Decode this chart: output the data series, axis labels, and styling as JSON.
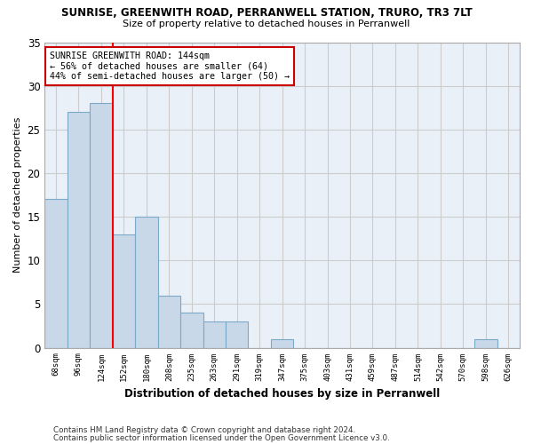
{
  "title": "SUNRISE, GREENWITH ROAD, PERRANWELL STATION, TRURO, TR3 7LT",
  "subtitle": "Size of property relative to detached houses in Perranwell",
  "xlabel": "Distribution of detached houses by size in Perranwell",
  "ylabel": "Number of detached properties",
  "categories": [
    "68sqm",
    "96sqm",
    "124sqm",
    "152sqm",
    "180sqm",
    "208sqm",
    "235sqm",
    "263sqm",
    "291sqm",
    "319sqm",
    "347sqm",
    "375sqm",
    "403sqm",
    "431sqm",
    "459sqm",
    "487sqm",
    "514sqm",
    "542sqm",
    "570sqm",
    "598sqm",
    "626sqm"
  ],
  "values": [
    17,
    27,
    28,
    13,
    15,
    6,
    4,
    3,
    3,
    0,
    1,
    0,
    0,
    0,
    0,
    0,
    0,
    0,
    0,
    1,
    0
  ],
  "bar_color": "#c8d8e8",
  "bar_edge_color": "#7aaac8",
  "grid_color": "#cccccc",
  "background_color": "#ffffff",
  "plot_bg_color": "#eaf0f8",
  "red_line_x": 2.5,
  "annotation_text": "SUNRISE GREENWITH ROAD: 144sqm\n← 56% of detached houses are smaller (64)\n44% of semi-detached houses are larger (50) →",
  "annotation_box_color": "#ffffff",
  "annotation_box_edge": "#cc0000",
  "ylim": [
    0,
    35
  ],
  "yticks": [
    0,
    5,
    10,
    15,
    20,
    25,
    30,
    35
  ],
  "footer_line1": "Contains HM Land Registry data © Crown copyright and database right 2024.",
  "footer_line2": "Contains public sector information licensed under the Open Government Licence v3.0."
}
